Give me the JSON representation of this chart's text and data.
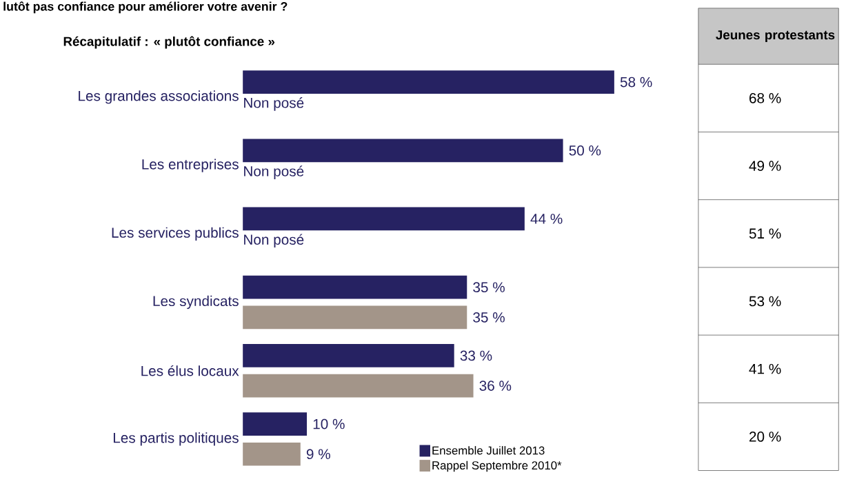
{
  "chart_data": [
    {
      "type": "bar",
      "orientation": "horizontal",
      "title": "lutôt pas confiance pour améliorer votre avenir ?",
      "subtitle": "Récapitulatif : « plutôt confiance »",
      "categories": [
        "Les grandes associations",
        "Les entreprises",
        "Les services publics",
        "Les syndicats",
        "Les élus locaux",
        "Les partis politiques"
      ],
      "tick_labels": "y",
      "legend": "bottom right",
      "series": [
        {
          "name": "Ensemble Juillet 2013",
          "color": "#262262",
          "values": [
            58,
            50,
            44,
            35,
            33,
            10
          ],
          "value_labels": [
            "58 %",
            "50 %",
            "44 %",
            "35 %",
            "33 %",
            "10 %"
          ]
        },
        {
          "name": "Rappel Septembre 2010*",
          "color": "#a39589",
          "values": [
            null,
            null,
            null,
            35,
            36,
            9
          ],
          "value_labels": [
            "Non posé",
            "Non posé",
            "Non posé",
            "35 %",
            "36 %",
            "9 %"
          ]
        }
      ]
    },
    {
      "type": "other",
      "title": "Jeunes protestants",
      "annotations": [
        "68 %",
        "49 %",
        "51 %",
        "53 %",
        "41 %",
        "20 %"
      ]
    }
  ]
}
